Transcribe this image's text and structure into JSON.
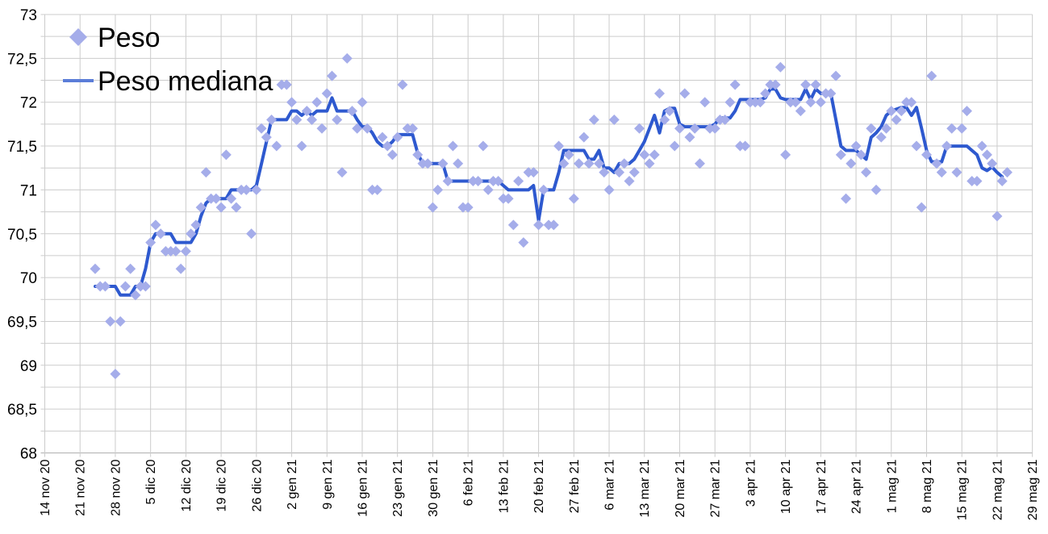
{
  "chart_data": {
    "type": "scatter",
    "title": "",
    "xlabel": "",
    "ylabel": "",
    "ylim": [
      68,
      73
    ],
    "y_major_step": 0.5,
    "y_minor_step": 0.25,
    "grid": true,
    "legend_position": "top-left-inside",
    "decimal_separator": ",",
    "y_tick_labels": [
      "73",
      "72,5",
      "72",
      "71,5",
      "71",
      "70,5",
      "70",
      "69,5",
      "69",
      "68,5",
      "68"
    ],
    "x_tick_labels": [
      "14 nov 20",
      "21 nov 20",
      "28 nov 20",
      "5 dic 20",
      "12 dic 20",
      "19 dic 20",
      "26 dic 20",
      "2 gen 21",
      "9 gen 21",
      "16 gen 21",
      "23 gen 21",
      "30 gen 21",
      "6 feb 21",
      "13 feb 21",
      "20 feb 21",
      "27 feb 21",
      "6 mar 21",
      "13 mar 21",
      "20 mar 21",
      "27 mar 21",
      "3 apr 21",
      "10 apr 21",
      "17 apr 21",
      "24 apr 21",
      "1 mag 21",
      "8 mag 21",
      "15 mag 21",
      "22 mag 21",
      "29 mag 21"
    ],
    "start_date_label": "24 nov 20",
    "days_offset_from_first_tick": 10,
    "series": [
      {
        "name": "Peso",
        "type": "scatter",
        "marker": "diamond",
        "color": "#a5adea",
        "values": [
          70.1,
          69.9,
          69.9,
          69.5,
          68.9,
          69.5,
          69.9,
          70.1,
          69.8,
          69.9,
          69.9,
          70.4,
          70.6,
          70.5,
          70.3,
          70.3,
          70.3,
          70.1,
          70.3,
          70.5,
          70.6,
          70.8,
          71.2,
          70.9,
          70.9,
          70.8,
          71.4,
          70.9,
          70.8,
          71.0,
          71.0,
          70.5,
          71.0,
          71.7,
          71.6,
          71.8,
          71.5,
          72.2,
          72.2,
          72.0,
          71.8,
          71.5,
          71.9,
          71.8,
          72.0,
          71.7,
          72.1,
          72.3,
          71.8,
          71.2,
          72.5,
          71.9,
          71.7,
          72.0,
          71.7,
          71.0,
          71.0,
          71.6,
          71.5,
          71.4,
          71.6,
          72.2,
          71.7,
          71.7,
          71.4,
          71.3,
          71.3,
          70.8,
          71.0,
          71.3,
          71.1,
          71.5,
          71.3,
          70.8,
          70.8,
          71.1,
          71.1,
          71.5,
          71.0,
          71.1,
          71.1,
          70.9,
          70.9,
          70.6,
          71.1,
          70.4,
          71.2,
          71.2,
          70.6,
          71.0,
          70.6,
          70.6,
          71.5,
          71.3,
          71.4,
          70.9,
          71.3,
          71.6,
          71.3,
          71.8,
          71.3,
          71.2,
          71.0,
          71.8,
          71.2,
          71.3,
          71.1,
          71.2,
          71.7,
          71.4,
          71.3,
          71.4,
          72.1,
          71.8,
          71.9,
          71.5,
          71.7,
          72.1,
          71.6,
          71.7,
          71.3,
          72.0,
          71.7,
          71.7,
          71.8,
          71.8,
          72.0,
          72.2,
          71.5,
          71.5,
          72.0,
          72.0,
          72.0,
          72.1,
          72.2,
          72.2,
          72.4,
          71.4,
          72.0,
          72.0,
          71.9,
          72.2,
          72.0,
          72.2,
          72.0,
          72.1,
          72.1,
          72.3,
          71.4,
          70.9,
          71.3,
          71.5,
          71.4,
          71.2,
          71.7,
          71.0,
          71.6,
          71.7,
          71.9,
          71.8,
          71.9,
          72.0,
          72.0,
          71.5,
          70.8,
          71.4,
          72.3,
          71.3,
          71.2,
          71.5,
          71.7,
          71.2,
          71.7,
          71.9,
          71.1,
          71.1,
          71.5,
          71.4,
          71.3,
          70.7,
          71.1,
          71.2
        ]
      },
      {
        "name": "Peso mediana",
        "type": "line",
        "color": "#2e59cf",
        "legend_marker_color": "#5b7dd8",
        "values": [
          69.9,
          69.9,
          69.9,
          69.9,
          69.9,
          69.8,
          69.8,
          69.8,
          69.9,
          69.9,
          70.1,
          70.4,
          70.5,
          70.5,
          70.5,
          70.5,
          70.4,
          70.4,
          70.4,
          70.4,
          70.5,
          70.7,
          70.85,
          70.9,
          70.9,
          70.9,
          70.9,
          71.0,
          71.0,
          71.0,
          71.0,
          71.0,
          71.05,
          71.3,
          71.55,
          71.8,
          71.8,
          71.8,
          71.8,
          71.9,
          71.9,
          71.85,
          71.9,
          71.85,
          71.9,
          71.9,
          71.9,
          72.05,
          71.9,
          71.9,
          71.9,
          71.9,
          71.8,
          71.72,
          71.72,
          71.65,
          71.55,
          71.5,
          71.5,
          71.55,
          71.63,
          71.63,
          71.63,
          71.63,
          71.42,
          71.3,
          71.3,
          71.3,
          71.3,
          71.3,
          71.1,
          71.1,
          71.1,
          71.1,
          71.1,
          71.1,
          71.1,
          71.1,
          71.1,
          71.1,
          71.1,
          71.05,
          71.0,
          71.0,
          71.0,
          71.0,
          71.0,
          71.05,
          70.65,
          71.0,
          71.0,
          71.0,
          71.2,
          71.45,
          71.45,
          71.45,
          71.45,
          71.45,
          71.35,
          71.35,
          71.45,
          71.25,
          71.25,
          71.2,
          71.3,
          71.3,
          71.3,
          71.35,
          71.45,
          71.55,
          71.7,
          71.85,
          71.65,
          71.9,
          71.93,
          71.93,
          71.75,
          71.72,
          71.72,
          71.72,
          71.72,
          71.72,
          71.72,
          71.75,
          71.82,
          71.82,
          71.82,
          71.9,
          72.03,
          72.03,
          72.03,
          72.03,
          72.03,
          72.05,
          72.15,
          72.15,
          72.05,
          72.03,
          72.03,
          72.03,
          72.03,
          72.15,
          72.03,
          72.15,
          72.1,
          72.1,
          72.1,
          71.8,
          71.5,
          71.45,
          71.45,
          71.45,
          71.4,
          71.35,
          71.6,
          71.65,
          71.72,
          71.85,
          71.9,
          71.92,
          71.94,
          71.94,
          71.85,
          71.94,
          71.7,
          71.45,
          71.32,
          71.32,
          71.32,
          71.5,
          71.5,
          71.5,
          71.5,
          71.5,
          71.45,
          71.4,
          71.25,
          71.22,
          71.26,
          71.2,
          71.15,
          null
        ]
      }
    ]
  },
  "colors": {
    "background": "#ffffff",
    "gridline": "#cccccc",
    "axis_line": "#b0b0b0",
    "text": "#000000",
    "peso_marker": "#a5adea",
    "mediana_line": "#2e59cf"
  }
}
